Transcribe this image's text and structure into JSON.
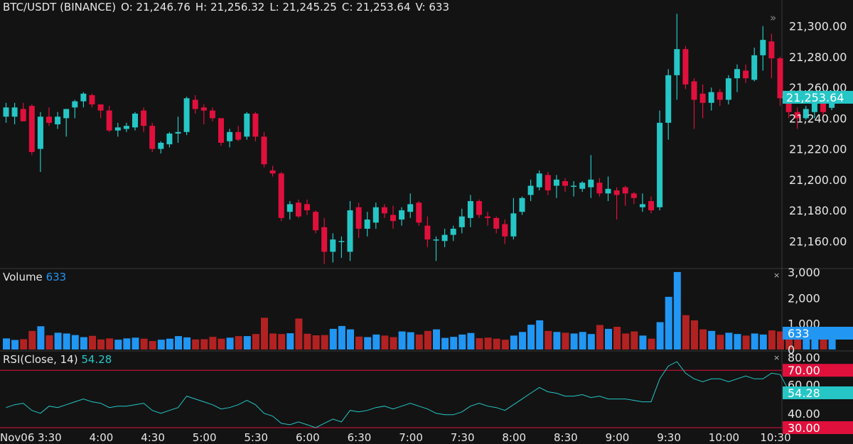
{
  "header": {
    "symbol": "BTC/USDT (BINANCE)",
    "open": "O: 21,246.76",
    "high": "H: 21,256.32",
    "low": "L: 21,245.25",
    "close": "C: 21,253.64",
    "volume": "V: 633"
  },
  "volume_panel": {
    "label": "Volume",
    "value": "633",
    "close_glyph": "×"
  },
  "rsi_panel": {
    "label": "RSI(Close, 14)",
    "value": "54.28",
    "close_glyph": "×"
  },
  "expand_glyph": "»",
  "colors": {
    "up": "#26c6c6",
    "down": "#e0103c",
    "vol_up": "#2196f3",
    "vol_down": "#b22222",
    "rsi_line": "#26c6c6",
    "rsi_band": "#e0103c",
    "bg": "#131313"
  },
  "chart_data": [
    {
      "type": "candlestick",
      "price_axis_ticks": [
        "21,300.00",
        "21,280.00",
        "21,260.00",
        "21,240.00",
        "21,220.00",
        "21,200.00",
        "21,180.00",
        "21,160.00"
      ],
      "price_ticks": [
        21300,
        21280,
        21260,
        21240,
        21220,
        21200,
        21180,
        21160
      ],
      "ylim": [
        21143,
        21317
      ],
      "last_price_label": "21,253.64",
      "last_price": 21253.64,
      "time_axis_labels": [
        "Nov06",
        "3:30",
        "4:00",
        "4:30",
        "5:00",
        "5:30",
        "6:00",
        "6:30",
        "7:00",
        "7:30",
        "8:00",
        "8:30",
        "9:00",
        "9:30",
        "10:00",
        "10:30"
      ],
      "time_label_positions": [
        0,
        5,
        11,
        17,
        23,
        29,
        35,
        41,
        47,
        53,
        59,
        65,
        71,
        77,
        83,
        89
      ],
      "candles": [
        {
          "o": 21241,
          "h": 21250,
          "l": 21237,
          "c": 21247
        },
        {
          "o": 21241,
          "h": 21250,
          "l": 21236,
          "c": 21247
        },
        {
          "o": 21246,
          "h": 21250,
          "l": 21238,
          "c": 21238
        },
        {
          "o": 21248,
          "h": 21249,
          "l": 21216,
          "c": 21218
        },
        {
          "o": 21220,
          "h": 21244,
          "l": 21205,
          "c": 21241
        },
        {
          "o": 21241,
          "h": 21247,
          "l": 21235,
          "c": 21237
        },
        {
          "o": 21236,
          "h": 21244,
          "l": 21233,
          "c": 21241
        },
        {
          "o": 21240,
          "h": 21246,
          "l": 21228,
          "c": 21246
        },
        {
          "o": 21247,
          "h": 21252,
          "l": 21240,
          "c": 21251
        },
        {
          "o": 21251,
          "h": 21257,
          "l": 21247,
          "c": 21256
        },
        {
          "o": 21255,
          "h": 21256,
          "l": 21247,
          "c": 21249
        },
        {
          "o": 21249,
          "h": 21249,
          "l": 21240,
          "c": 21245
        },
        {
          "o": 21245,
          "h": 21248,
          "l": 21231,
          "c": 21232
        },
        {
          "o": 21232,
          "h": 21237,
          "l": 21228,
          "c": 21234
        },
        {
          "o": 21233,
          "h": 21237,
          "l": 21231,
          "c": 21235
        },
        {
          "o": 21234,
          "h": 21244,
          "l": 21232,
          "c": 21243
        },
        {
          "o": 21245,
          "h": 21247,
          "l": 21231,
          "c": 21235
        },
        {
          "o": 21235,
          "h": 21237,
          "l": 21218,
          "c": 21220
        },
        {
          "o": 21220,
          "h": 21225,
          "l": 21217,
          "c": 21224
        },
        {
          "o": 21223,
          "h": 21231,
          "l": 21221,
          "c": 21230
        },
        {
          "o": 21230,
          "h": 21241,
          "l": 21224,
          "c": 21231
        },
        {
          "o": 21231,
          "h": 21254,
          "l": 21229,
          "c": 21253
        },
        {
          "o": 21252,
          "h": 21255,
          "l": 21243,
          "c": 21246
        },
        {
          "o": 21247,
          "h": 21249,
          "l": 21236,
          "c": 21245
        },
        {
          "o": 21245,
          "h": 21247,
          "l": 21238,
          "c": 21240
        },
        {
          "o": 21240,
          "h": 21240,
          "l": 21222,
          "c": 21224
        },
        {
          "o": 21225,
          "h": 21233,
          "l": 21221,
          "c": 21231
        },
        {
          "o": 21231,
          "h": 21235,
          "l": 21225,
          "c": 21226
        },
        {
          "o": 21228,
          "h": 21244,
          "l": 21226,
          "c": 21243
        },
        {
          "o": 21243,
          "h": 21244,
          "l": 21225,
          "c": 21228
        },
        {
          "o": 21228,
          "h": 21231,
          "l": 21208,
          "c": 21210
        },
        {
          "o": 21206,
          "h": 21209,
          "l": 21202,
          "c": 21204
        },
        {
          "o": 21204,
          "h": 21205,
          "l": 21173,
          "c": 21175
        },
        {
          "o": 21179,
          "h": 21186,
          "l": 21174,
          "c": 21184
        },
        {
          "o": 21185,
          "h": 21187,
          "l": 21175,
          "c": 21176
        },
        {
          "o": 21184,
          "h": 21187,
          "l": 21177,
          "c": 21180
        },
        {
          "o": 21179,
          "h": 21180,
          "l": 21165,
          "c": 21167
        },
        {
          "o": 21169,
          "h": 21175,
          "l": 21145,
          "c": 21153
        },
        {
          "o": 21153,
          "h": 21165,
          "l": 21146,
          "c": 21161
        },
        {
          "o": 21160,
          "h": 21163,
          "l": 21149,
          "c": 21160
        },
        {
          "o": 21153,
          "h": 21186,
          "l": 21147,
          "c": 21180
        },
        {
          "o": 21182,
          "h": 21185,
          "l": 21162,
          "c": 21168
        },
        {
          "o": 21168,
          "h": 21179,
          "l": 21163,
          "c": 21174
        },
        {
          "o": 21172,
          "h": 21185,
          "l": 21168,
          "c": 21182
        },
        {
          "o": 21182,
          "h": 21184,
          "l": 21175,
          "c": 21178
        },
        {
          "o": 21177,
          "h": 21183,
          "l": 21168,
          "c": 21173
        },
        {
          "o": 21174,
          "h": 21182,
          "l": 21170,
          "c": 21180
        },
        {
          "o": 21179,
          "h": 21191,
          "l": 21175,
          "c": 21184
        },
        {
          "o": 21185,
          "h": 21186,
          "l": 21170,
          "c": 21172
        },
        {
          "o": 21170,
          "h": 21176,
          "l": 21156,
          "c": 21161
        },
        {
          "o": 21161,
          "h": 21163,
          "l": 21147,
          "c": 21161
        },
        {
          "o": 21160,
          "h": 21168,
          "l": 21156,
          "c": 21164
        },
        {
          "o": 21164,
          "h": 21170,
          "l": 21160,
          "c": 21168
        },
        {
          "o": 21169,
          "h": 21181,
          "l": 21165,
          "c": 21176
        },
        {
          "o": 21175,
          "h": 21190,
          "l": 21169,
          "c": 21186
        },
        {
          "o": 21186,
          "h": 21187,
          "l": 21175,
          "c": 21177
        },
        {
          "o": 21176,
          "h": 21179,
          "l": 21170,
          "c": 21175
        },
        {
          "o": 21175,
          "h": 21176,
          "l": 21165,
          "c": 21168
        },
        {
          "o": 21171,
          "h": 21174,
          "l": 21158,
          "c": 21163
        },
        {
          "o": 21163,
          "h": 21188,
          "l": 21161,
          "c": 21178
        },
        {
          "o": 21179,
          "h": 21189,
          "l": 21177,
          "c": 21188
        },
        {
          "o": 21190,
          "h": 21200,
          "l": 21186,
          "c": 21196
        },
        {
          "o": 21195,
          "h": 21206,
          "l": 21193,
          "c": 21204
        },
        {
          "o": 21203,
          "h": 21205,
          "l": 21190,
          "c": 21193
        },
        {
          "o": 21196,
          "h": 21203,
          "l": 21188,
          "c": 21200
        },
        {
          "o": 21199,
          "h": 21201,
          "l": 21192,
          "c": 21196
        },
        {
          "o": 21196,
          "h": 21199,
          "l": 21189,
          "c": 21196
        },
        {
          "o": 21194,
          "h": 21199,
          "l": 21192,
          "c": 21198
        },
        {
          "o": 21195,
          "h": 21216,
          "l": 21188,
          "c": 21200
        },
        {
          "o": 21198,
          "h": 21201,
          "l": 21189,
          "c": 21191
        },
        {
          "o": 21191,
          "h": 21202,
          "l": 21186,
          "c": 21194
        },
        {
          "o": 21193,
          "h": 21195,
          "l": 21174,
          "c": 21190
        },
        {
          "o": 21195,
          "h": 21196,
          "l": 21183,
          "c": 21191
        },
        {
          "o": 21191,
          "h": 21192,
          "l": 21184,
          "c": 21188
        },
        {
          "o": 21182,
          "h": 21191,
          "l": 21179,
          "c": 21184
        },
        {
          "o": 21186,
          "h": 21189,
          "l": 21178,
          "c": 21180
        },
        {
          "o": 21182,
          "h": 21245,
          "l": 21180,
          "c": 21237
        },
        {
          "o": 21237,
          "h": 21272,
          "l": 21226,
          "c": 21268
        },
        {
          "o": 21268,
          "h": 21308,
          "l": 21252,
          "c": 21285
        },
        {
          "o": 21285,
          "h": 21287,
          "l": 21259,
          "c": 21262
        },
        {
          "o": 21264,
          "h": 21266,
          "l": 21233,
          "c": 21252
        },
        {
          "o": 21256,
          "h": 21262,
          "l": 21240,
          "c": 21250
        },
        {
          "o": 21250,
          "h": 21260,
          "l": 21245,
          "c": 21257
        },
        {
          "o": 21257,
          "h": 21259,
          "l": 21248,
          "c": 21252
        },
        {
          "o": 21252,
          "h": 21268,
          "l": 21249,
          "c": 21266
        },
        {
          "o": 21266,
          "h": 21275,
          "l": 21257,
          "c": 21272
        },
        {
          "o": 21271,
          "h": 21275,
          "l": 21263,
          "c": 21266
        },
        {
          "o": 21265,
          "h": 21286,
          "l": 21264,
          "c": 21281
        },
        {
          "o": 21281,
          "h": 21300,
          "l": 21271,
          "c": 21291
        },
        {
          "o": 21290,
          "h": 21295,
          "l": 21266,
          "c": 21279
        },
        {
          "o": 21279,
          "h": 21280,
          "l": 21248,
          "c": 21253
        },
        {
          "o": 21252,
          "h": 21255,
          "l": 21240,
          "c": 21244
        },
        {
          "o": 21244,
          "h": 21247,
          "l": 21233,
          "c": 21240
        },
        {
          "o": 21240,
          "h": 21248,
          "l": 21239,
          "c": 21246
        },
        {
          "o": 21244,
          "h": 21251,
          "l": 21240,
          "c": 21251
        },
        {
          "o": 21251,
          "h": 21252,
          "l": 21242,
          "c": 21244
        },
        {
          "o": 21246.76,
          "h": 21256.32,
          "l": 21245.25,
          "c": 21253.64
        }
      ]
    },
    {
      "type": "bar",
      "title": "Volume",
      "axis_ticks": [
        "3,000",
        "2,000",
        "1,000",
        "0"
      ],
      "tick_values": [
        3000,
        2000,
        1000,
        0
      ],
      "ylim": [
        0,
        3080
      ],
      "last_label": "633",
      "last_value": 633,
      "values": [
        430,
        370,
        400,
        720,
        900,
        550,
        650,
        620,
        560,
        480,
        530,
        390,
        430,
        380,
        430,
        460,
        420,
        330,
        380,
        420,
        520,
        470,
        390,
        400,
        490,
        420,
        460,
        520,
        520,
        600,
        1230,
        620,
        600,
        630,
        1200,
        610,
        550,
        560,
        800,
        910,
        780,
        500,
        480,
        580,
        540,
        480,
        700,
        670,
        580,
        720,
        780,
        450,
        490,
        580,
        640,
        440,
        460,
        420,
        380,
        540,
        680,
        960,
        1130,
        720,
        680,
        650,
        620,
        680,
        600,
        950,
        800,
        880,
        620,
        700,
        540,
        420,
        1060,
        2040,
        3000,
        1330,
        1130,
        780,
        720,
        570,
        650,
        600,
        540,
        620,
        580,
        740,
        700,
        860,
        740,
        660,
        460,
        540,
        633
      ]
    },
    {
      "type": "line",
      "title": "RSI(Close, 14)",
      "axis_ticks": [
        "80.00",
        "60.00",
        "40.00"
      ],
      "tick_values": [
        80,
        60,
        40
      ],
      "bands": [
        70,
        30
      ],
      "band_labels": [
        "70.00",
        "30.00"
      ],
      "ylim": [
        28,
        82
      ],
      "last_label": "54.28",
      "last_value": 54.28,
      "values": [
        44,
        46,
        47,
        42,
        40,
        45,
        44,
        46,
        48,
        50,
        48,
        47,
        44,
        45,
        45,
        46,
        47,
        42,
        40,
        42,
        44,
        52,
        50,
        48,
        46,
        43,
        44,
        46,
        49,
        46,
        40,
        38,
        33,
        32,
        34,
        32,
        30,
        33,
        36,
        34,
        42,
        41,
        42,
        44,
        45,
        43,
        45,
        47,
        45,
        43,
        40,
        39,
        39,
        41,
        45,
        47,
        45,
        44,
        42,
        46,
        50,
        54,
        58,
        55,
        54,
        52,
        52,
        53,
        51,
        52,
        50,
        50,
        50,
        49,
        48,
        48,
        64,
        73,
        76,
        68,
        64,
        62,
        64,
        64,
        62,
        64,
        66,
        64,
        64,
        68,
        67,
        56,
        52,
        51,
        53,
        52,
        54.28
      ]
    }
  ]
}
